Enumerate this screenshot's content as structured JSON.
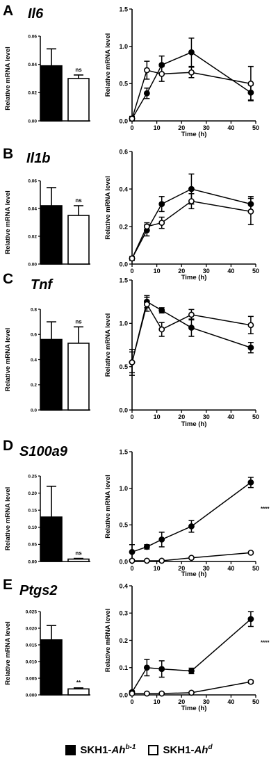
{
  "legend": {
    "items": [
      {
        "prefix": "SKH1-",
        "gene": "Ah",
        "sup": "b-1",
        "fill": "#000000"
      },
      {
        "prefix": "SKH1-",
        "gene": "Ah",
        "sup": "d",
        "fill": "#ffffff"
      }
    ]
  },
  "chart_data": [
    {
      "panel": "A",
      "gene": "Il6",
      "type": "bar",
      "ylabel": "Relative mRNA level",
      "ylim": [
        0,
        0.06
      ],
      "yticks": [
        "0.00",
        "0.02",
        "0.04",
        "0.06"
      ],
      "bars": [
        {
          "value": 0.039,
          "err": 0.012,
          "fill": "#000000"
        },
        {
          "value": 0.03,
          "err": 0.0025,
          "fill": "#ffffff"
        }
      ],
      "annotation": "ns"
    },
    {
      "panel": "A",
      "type": "line",
      "xlabel": "Time (h)",
      "ylabel": "Relative mRNA level",
      "xlim": [
        0,
        50
      ],
      "ylim": [
        0,
        1.5
      ],
      "xticks": [
        "0",
        "10",
        "20",
        "30",
        "40",
        "50"
      ],
      "yticks": [
        "0.0",
        "0.5",
        "1.0",
        "1.5"
      ],
      "x": [
        0,
        6,
        12,
        24,
        48
      ],
      "series": [
        {
          "marker": "filled",
          "values": [
            0.03,
            0.37,
            0.75,
            0.92,
            0.38
          ],
          "err": [
            0.03,
            0.07,
            0.12,
            0.19,
            0.1
          ]
        },
        {
          "marker": "open",
          "values": [
            0.03,
            0.68,
            0.63,
            0.65,
            0.5
          ],
          "err": [
            0.02,
            0.12,
            0.1,
            0.07,
            0.23
          ]
        }
      ]
    },
    {
      "panel": "B",
      "gene": "Il1b",
      "type": "bar",
      "ylabel": "Relative mRNA level",
      "ylim": [
        0,
        0.06
      ],
      "yticks": [
        "0.00",
        "0.02",
        "0.04",
        "0.06"
      ],
      "bars": [
        {
          "value": 0.042,
          "err": 0.013,
          "fill": "#000000"
        },
        {
          "value": 0.035,
          "err": 0.007,
          "fill": "#ffffff"
        }
      ],
      "annotation": "ns"
    },
    {
      "panel": "B",
      "type": "line",
      "xlabel": "Time (h)",
      "ylabel": "Relative mRNA level",
      "xlim": [
        0,
        50
      ],
      "ylim": [
        0,
        0.6
      ],
      "xticks": [
        "0",
        "10",
        "20",
        "30",
        "40",
        "50"
      ],
      "yticks": [
        "0.0",
        "0.2",
        "0.4",
        "0.6"
      ],
      "x": [
        0,
        6,
        12,
        24,
        48
      ],
      "series": [
        {
          "marker": "filled",
          "values": [
            0.03,
            0.18,
            0.32,
            0.4,
            0.32
          ],
          "err": [
            0.01,
            0.03,
            0.04,
            0.08,
            0.04
          ]
        },
        {
          "marker": "open",
          "values": [
            0.03,
            0.2,
            0.22,
            0.335,
            0.28
          ],
          "err": [
            0.01,
            0.02,
            0.03,
            0.04,
            0.07
          ]
        }
      ]
    },
    {
      "panel": "C",
      "gene": "Tnf",
      "type": "bar",
      "ylabel": "Relative mRNA level",
      "ylim": [
        0,
        0.8
      ],
      "yticks": [
        "0.0",
        "0.2",
        "0.4",
        "0.6",
        "0.8"
      ],
      "bars": [
        {
          "value": 0.56,
          "err": 0.14,
          "fill": "#000000"
        },
        {
          "value": 0.53,
          "err": 0.13,
          "fill": "#ffffff"
        }
      ],
      "annotation": "ns"
    },
    {
      "panel": "C",
      "type": "line",
      "xlabel": "Time (h)",
      "ylabel": "Relative mRNA level",
      "xlim": [
        0,
        50
      ],
      "ylim": [
        0,
        1.5
      ],
      "xticks": [
        "0",
        "10",
        "20",
        "30",
        "40",
        "50"
      ],
      "yticks": [
        "0.0",
        "0.5",
        "1.0",
        "1.5"
      ],
      "x": [
        0,
        6,
        12,
        24,
        48
      ],
      "series": [
        {
          "marker": "filled",
          "values": [
            0.55,
            1.25,
            1.15,
            0.95,
            0.72
          ],
          "err": [
            0.12,
            0.07,
            0.03,
            0.1,
            0.06
          ]
        },
        {
          "marker": "open",
          "values": [
            0.55,
            1.22,
            0.93,
            1.1,
            0.98
          ],
          "err": [
            0.15,
            0.08,
            0.08,
            0.06,
            0.1
          ]
        }
      ]
    },
    {
      "panel": "D",
      "gene": "S100a9",
      "type": "bar",
      "ylabel": "Relative mRNA level",
      "ylim": [
        0,
        0.25
      ],
      "yticks": [
        "0.00",
        "0.05",
        "0.10",
        "0.15",
        "0.20",
        "0.25"
      ],
      "bars": [
        {
          "value": 0.13,
          "err": 0.09,
          "fill": "#000000"
        },
        {
          "value": 0.007,
          "err": 0.002,
          "fill": "#ffffff"
        }
      ],
      "annotation": "ns"
    },
    {
      "panel": "D",
      "type": "line",
      "xlabel": "Time (h)",
      "ylabel": "Relative mRNA level",
      "xlim": [
        0,
        50
      ],
      "ylim": [
        0,
        1.5
      ],
      "xticks": [
        "0",
        "10",
        "20",
        "30",
        "40",
        "50"
      ],
      "yticks": [
        "0.0",
        "0.5",
        "1.0",
        "1.5"
      ],
      "x": [
        0,
        6,
        12,
        24,
        48
      ],
      "series": [
        {
          "marker": "filled",
          "values": [
            0.13,
            0.2,
            0.3,
            0.48,
            1.08
          ],
          "err": [
            0.1,
            0.03,
            0.1,
            0.08,
            0.07
          ]
        },
        {
          "marker": "open",
          "values": [
            0.01,
            0.01,
            0.01,
            0.05,
            0.12
          ],
          "err": [
            0.005,
            0.005,
            0.005,
            0.01,
            0.01
          ]
        }
      ],
      "annotation": "****"
    },
    {
      "panel": "E",
      "gene": "Ptgs2",
      "type": "bar",
      "ylabel": "Relative mRNA level",
      "ylim": [
        0,
        0.025
      ],
      "yticks": [
        "0.000",
        "0.005",
        "0.010",
        "0.015",
        "0.020",
        "0.025"
      ],
      "bars": [
        {
          "value": 0.0165,
          "err": 0.0043,
          "fill": "#000000"
        },
        {
          "value": 0.0018,
          "err": 0.0003,
          "fill": "#ffffff"
        }
      ],
      "annotation": "**"
    },
    {
      "panel": "E",
      "type": "line",
      "xlabel": "Time (h)",
      "ylabel": "Relative mRNA level",
      "xlim": [
        0,
        50
      ],
      "ylim": [
        0,
        0.4
      ],
      "xticks": [
        "0",
        "10",
        "20",
        "30",
        "40",
        "50"
      ],
      "yticks": [
        "0.0",
        "0.1",
        "0.2",
        "0.3",
        "0.4"
      ],
      "x": [
        0,
        6,
        12,
        24,
        48
      ],
      "series": [
        {
          "marker": "filled",
          "values": [
            0.01,
            0.1,
            0.095,
            0.088,
            0.278
          ],
          "err": [
            0.005,
            0.03,
            0.03,
            0.01,
            0.027
          ]
        },
        {
          "marker": "open",
          "values": [
            0.005,
            0.005,
            0.005,
            0.008,
            0.048
          ],
          "err": [
            0.002,
            0.002,
            0.002,
            0.003,
            0.005
          ]
        }
      ],
      "annotation": "****"
    }
  ]
}
